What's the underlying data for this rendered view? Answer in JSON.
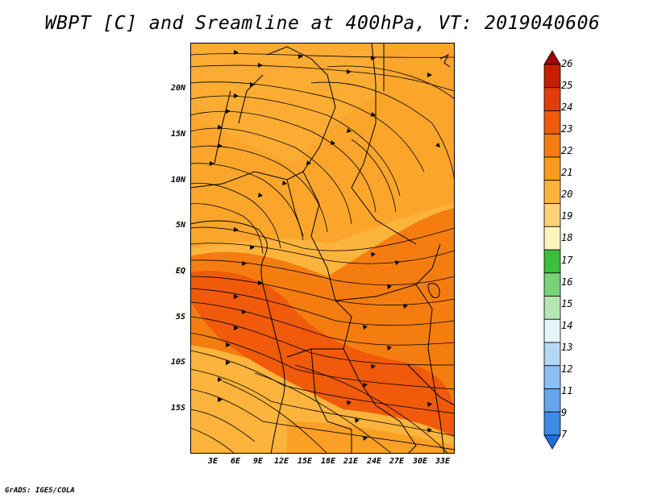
{
  "title": "WBPT [C] and Sreamline at 400hPa, VT: 2019040606",
  "credit": "GrADS: IGES/COLA",
  "map": {
    "lat_ticks": [
      "20N",
      "15N",
      "10N",
      "5N",
      "EQ",
      "5S",
      "10S",
      "15S"
    ],
    "lon_ticks": [
      "3E",
      "6E",
      "9E",
      "12E",
      "15E",
      "18E",
      "21E",
      "24E",
      "27E",
      "30E",
      "33E"
    ]
  },
  "colorbar": {
    "levels": [
      "26",
      "25",
      "24",
      "23",
      "22",
      "21",
      "20",
      "19",
      "18",
      "17",
      "16",
      "15",
      "14",
      "13",
      "12",
      "11",
      "9",
      "7"
    ],
    "colors": [
      "#a00000",
      "#c81e00",
      "#e13c0a",
      "#f05a0a",
      "#f57d0f",
      "#fa9b1e",
      "#fcb43c",
      "#fdd278",
      "#fff5be",
      "#3cbe3c",
      "#78d278",
      "#b4e6b4",
      "#e6f5fa",
      "#b4d7f5",
      "#8cbef0",
      "#64a5eb",
      "#3c8ce6",
      "#1e6ee1"
    ]
  }
}
